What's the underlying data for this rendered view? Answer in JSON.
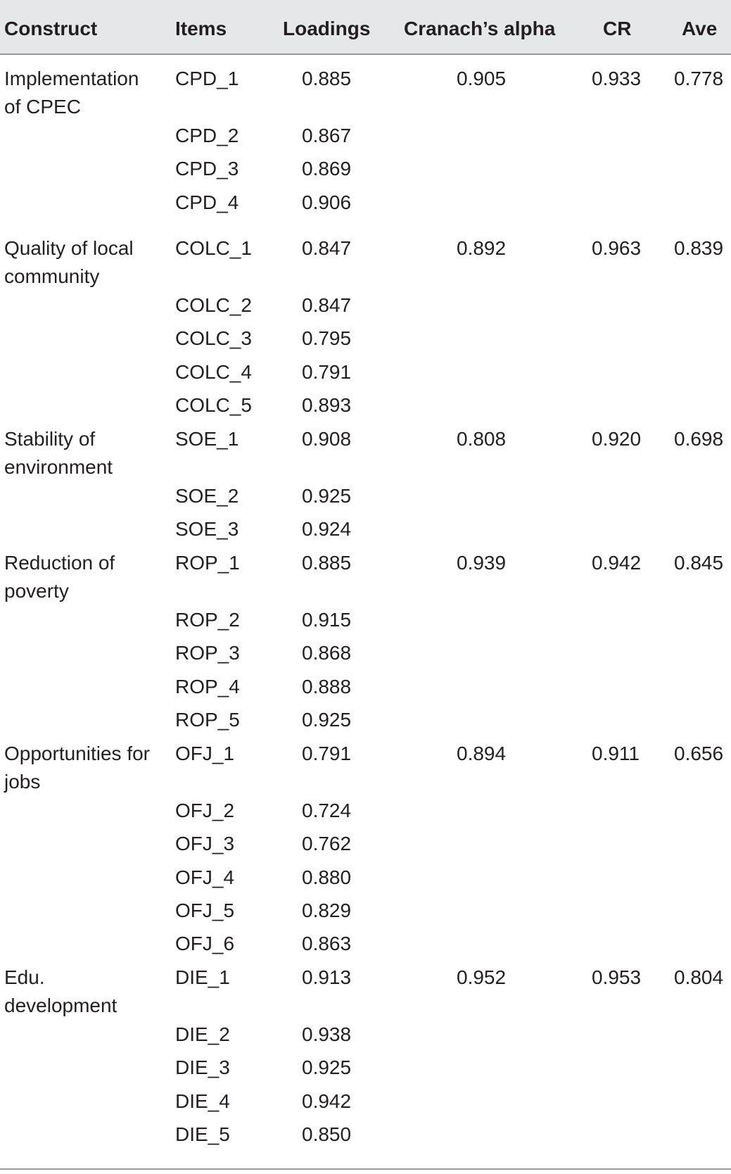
{
  "table": {
    "headers": {
      "construct": "Construct",
      "items": "Items",
      "loadings": "Loadings",
      "alpha": "Cranach’s alpha",
      "cr": "CR",
      "ave": "Ave"
    },
    "groups": [
      {
        "construct": "Implementation of CPEC",
        "alpha": "0.905",
        "cr": "0.933",
        "ave": "0.778",
        "items": [
          {
            "item": "CPD_1",
            "loading": "0.885"
          },
          {
            "item": "CPD_2",
            "loading": "0.867"
          },
          {
            "item": "CPD_3",
            "loading": "0.869"
          },
          {
            "item": "CPD_4",
            "loading": "0.906"
          }
        ]
      },
      {
        "construct": "Quality of local community",
        "alpha": "0.892",
        "cr": "0.963",
        "ave": "0.839",
        "items": [
          {
            "item": "COLC_1",
            "loading": "0.847"
          },
          {
            "item": "COLC_2",
            "loading": "0.847"
          },
          {
            "item": "COLC_3",
            "loading": "0.795"
          },
          {
            "item": "COLC_4",
            "loading": "0.791"
          },
          {
            "item": "COLC_5",
            "loading": "0.893"
          }
        ]
      },
      {
        "construct": "Stability of environment",
        "alpha": "0.808",
        "cr": "0.920",
        "ave": "0.698",
        "items": [
          {
            "item": "SOE_1",
            "loading": "0.908"
          },
          {
            "item": "SOE_2",
            "loading": "0.925"
          },
          {
            "item": "SOE_3",
            "loading": "0.924"
          }
        ]
      },
      {
        "construct": "Reduction of poverty",
        "alpha": "0.939",
        "cr": "0.942",
        "ave": "0.845",
        "items": [
          {
            "item": "ROP_1",
            "loading": "0.885"
          },
          {
            "item": "ROP_2",
            "loading": "0.915"
          },
          {
            "item": "ROP_3",
            "loading": "0.868"
          },
          {
            "item": "ROP_4",
            "loading": "0.888"
          },
          {
            "item": "ROP_5",
            "loading": "0.925"
          }
        ]
      },
      {
        "construct": "Opportunities for jobs",
        "alpha": "0.894",
        "cr": "0.911",
        "ave": "0.656",
        "items": [
          {
            "item": "OFJ_1",
            "loading": "0.791"
          },
          {
            "item": "OFJ_2",
            "loading": "0.724"
          },
          {
            "item": "OFJ_3",
            "loading": "0.762"
          },
          {
            "item": "OFJ_4",
            "loading": "0.880"
          },
          {
            "item": "OFJ_5",
            "loading": "0.829"
          },
          {
            "item": "OFJ_6",
            "loading": "0.863"
          }
        ]
      },
      {
        "construct": "Edu. development",
        "alpha": "0.952",
        "cr": "0.953",
        "ave": "0.804",
        "items": [
          {
            "item": "DIE_1",
            "loading": "0.913"
          },
          {
            "item": "DIE_2",
            "loading": "0.938"
          },
          {
            "item": "DIE_3",
            "loading": "0.925"
          },
          {
            "item": "DIE_4",
            "loading": "0.942"
          },
          {
            "item": "DIE_5",
            "loading": "0.850"
          }
        ]
      }
    ]
  }
}
